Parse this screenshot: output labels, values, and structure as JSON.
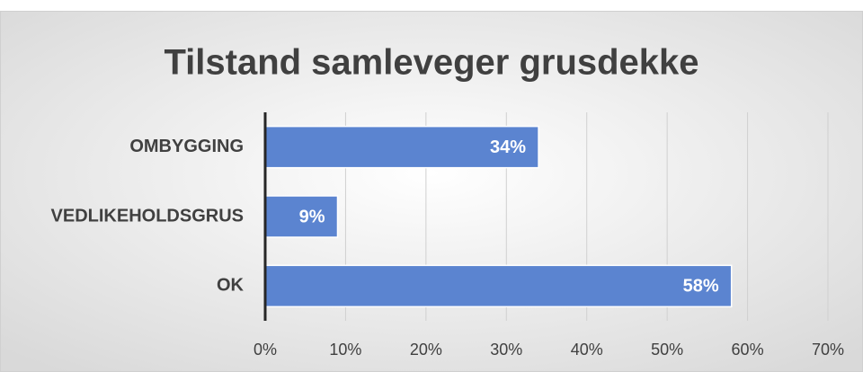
{
  "chart_data": {
    "type": "bar",
    "orientation": "horizontal",
    "title": "Tilstand samleveger grusdekke",
    "categories": [
      "OMBYGGING",
      "VEDLIKEHOLDSGRUS",
      "OK"
    ],
    "values": [
      34,
      9,
      58
    ],
    "value_labels": [
      "34%",
      "9%",
      "58%"
    ],
    "color": "#5b84d0",
    "xlim": [
      0,
      70
    ],
    "xticks": [
      {
        "value": 0,
        "label": "0%"
      },
      {
        "value": 10,
        "label": "10%"
      },
      {
        "value": 20,
        "label": "20%"
      },
      {
        "value": 30,
        "label": "30%"
      },
      {
        "value": 40,
        "label": "40%"
      },
      {
        "value": 50,
        "label": "50%"
      },
      {
        "value": 60,
        "label": "60%"
      },
      {
        "value": 70,
        "label": "70%"
      }
    ],
    "grid": true
  }
}
